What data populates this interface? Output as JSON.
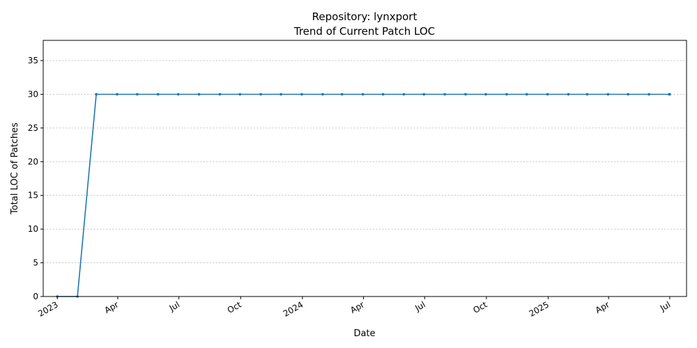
{
  "chart_data": {
    "type": "line",
    "title": "Repository: lynxport",
    "subtitle": "Trend of Current Patch LOC",
    "xlabel": "Date",
    "ylabel": "Total LOC of Patches",
    "ylim": [
      0,
      38
    ],
    "y_ticks": [
      0,
      5,
      10,
      15,
      20,
      25,
      30,
      35
    ],
    "x_range": [
      "2022-12-11",
      "2025-07-26"
    ],
    "x_ticks": [
      {
        "date": "2023-01-01",
        "label": "2023"
      },
      {
        "date": "2023-04-01",
        "label": "Apr"
      },
      {
        "date": "2023-07-01",
        "label": "Jul"
      },
      {
        "date": "2023-10-01",
        "label": "Oct"
      },
      {
        "date": "2024-01-01",
        "label": "2024"
      },
      {
        "date": "2024-04-01",
        "label": "Apr"
      },
      {
        "date": "2024-07-01",
        "label": "Jul"
      },
      {
        "date": "2024-10-01",
        "label": "Oct"
      },
      {
        "date": "2025-01-01",
        "label": "2025"
      },
      {
        "date": "2025-04-01",
        "label": "Apr"
      },
      {
        "date": "2025-07-01",
        "label": "Jul"
      }
    ],
    "grid": "y",
    "line_color": "#1f77b4",
    "series": [
      {
        "x": [
          "2023-01-01",
          "2023-01-31",
          "2023-02-28",
          "2023-03-31",
          "2023-04-30",
          "2023-05-31",
          "2023-06-30",
          "2023-07-31",
          "2023-08-31",
          "2023-09-30",
          "2023-10-31",
          "2023-11-30",
          "2023-12-31",
          "2024-01-31",
          "2024-02-29",
          "2024-03-31",
          "2024-04-30",
          "2024-05-31",
          "2024-06-30",
          "2024-07-31",
          "2024-08-31",
          "2024-09-30",
          "2024-10-31",
          "2024-11-30",
          "2024-12-31",
          "2025-01-31",
          "2025-02-28",
          "2025-03-31",
          "2025-04-30",
          "2025-05-31",
          "2025-06-30",
          "2025-07-01"
        ],
        "values": [
          0,
          0,
          30,
          30,
          30,
          30,
          30,
          30,
          30,
          30,
          30,
          30,
          30,
          30,
          30,
          30,
          30,
          30,
          30,
          30,
          30,
          30,
          30,
          30,
          30,
          30,
          30,
          30,
          30,
          30,
          30,
          30
        ]
      }
    ]
  }
}
